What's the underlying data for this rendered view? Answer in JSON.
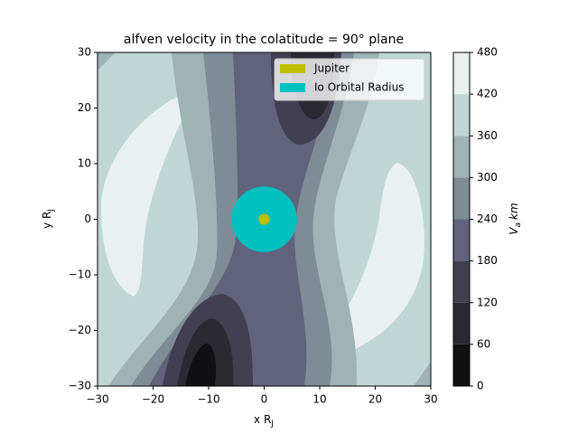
{
  "chart_data": {
    "type": "contourf",
    "title": "alfven velocity in the colatitude = 90° plane",
    "x_label": [
      "x R",
      "J"
    ],
    "y_label": [
      "y R",
      "J"
    ],
    "colorbar_label": [
      "V",
      "a",
      "km"
    ],
    "xlim": [
      -30,
      30
    ],
    "ylim": [
      -30,
      30
    ],
    "xticks": [
      {
        "value": -30,
        "label": "−30"
      },
      {
        "value": -20,
        "label": "−20"
      },
      {
        "value": -10,
        "label": "−10"
      },
      0,
      10,
      20,
      30
    ],
    "yticks": [
      {
        "value": -30,
        "label": "−30"
      },
      {
        "value": -20,
        "label": "−20"
      },
      {
        "value": -10,
        "label": "−10"
      },
      0,
      10,
      20,
      30
    ],
    "levels": [
      0,
      60,
      120,
      180,
      240,
      300,
      360,
      420,
      480
    ],
    "colors": [
      "#111113",
      "#2b2932",
      "#423f52",
      "#61627c",
      "#7f8c95",
      "#9fb3b5",
      "#bfd6d4",
      "#e8f1ef"
    ],
    "circles": [
      {
        "name": "Jupiter",
        "color": "#bfbf00",
        "x": 0,
        "y": 0,
        "radius": 1
      },
      {
        "name": "Io Orbital Radius",
        "color": "#00c0c0",
        "x": 0,
        "y": 0,
        "radius": 5.9
      }
    ],
    "legend": "upper right"
  }
}
